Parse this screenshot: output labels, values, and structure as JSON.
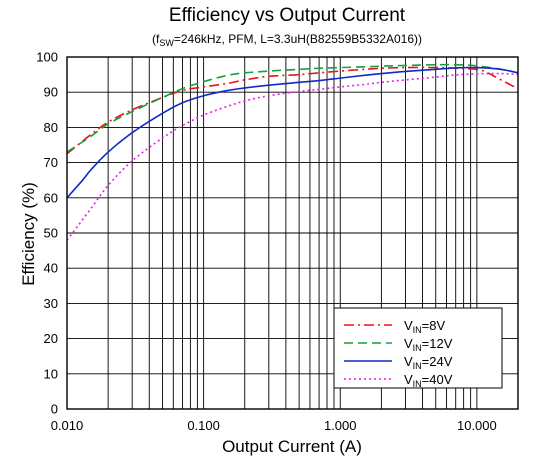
{
  "chart_data": {
    "type": "line",
    "title": "Efficiency vs Output Current",
    "subtitle": {
      "prefix": "(f",
      "prefix_sub": "SW",
      "rest": "=246kHz, PFM, L=3.3uH(B82559B5332A016))"
    },
    "xlabel": "Output Current (A)",
    "ylabel": "Efficiency (%)",
    "xscale": "log",
    "xlim": [
      0.01,
      20
    ],
    "ylim": [
      0,
      100
    ],
    "grid": true,
    "legend_position": "bottom-right",
    "xticks": [
      {
        "value": 0.01,
        "label": "0.010"
      },
      {
        "value": 0.1,
        "label": "0.100"
      },
      {
        "value": 1,
        "label": "1.000"
      },
      {
        "value": 10,
        "label": "10.000"
      }
    ],
    "yticks": [
      {
        "value": 0,
        "label": "0"
      },
      {
        "value": 10,
        "label": "10"
      },
      {
        "value": 20,
        "label": "20"
      },
      {
        "value": 30,
        "label": "30"
      },
      {
        "value": 40,
        "label": "40"
      },
      {
        "value": 50,
        "label": "50"
      },
      {
        "value": 60,
        "label": "60"
      },
      {
        "value": 70,
        "label": "70"
      },
      {
        "value": 80,
        "label": "80"
      },
      {
        "value": 90,
        "label": "90"
      },
      {
        "value": 100,
        "label": "100"
      }
    ],
    "series": [
      {
        "name": "VIN=8V",
        "label_main": "V",
        "label_sub": "IN",
        "label_rest": "=8V",
        "color": "#e8141a",
        "dash": "10,4,2,4",
        "x": [
          0.01,
          0.015,
          0.02,
          0.03,
          0.05,
          0.07,
          0.1,
          0.15,
          0.2,
          0.3,
          0.5,
          0.7,
          1,
          1.5,
          2,
          3,
          5,
          7,
          10,
          12,
          15,
          20
        ],
        "y": [
          72.5,
          78,
          81.5,
          85,
          88.5,
          90.5,
          91.5,
          92.5,
          93.5,
          94.5,
          95,
          95.5,
          96,
          96.5,
          96.8,
          97,
          97,
          96.8,
          96.5,
          95.5,
          93.5,
          91
        ]
      },
      {
        "name": "VIN=12V",
        "label_main": "V",
        "label_sub": "IN",
        "label_rest": "=12V",
        "color": "#14a03c",
        "dash": "9,5",
        "x": [
          0.01,
          0.015,
          0.02,
          0.03,
          0.05,
          0.07,
          0.1,
          0.15,
          0.2,
          0.3,
          0.5,
          0.7,
          1,
          1.5,
          2,
          3,
          5,
          7,
          10,
          15,
          20
        ],
        "y": [
          73,
          77.5,
          81,
          84.5,
          88.5,
          91,
          93,
          94.8,
          95.5,
          96,
          96.5,
          96.8,
          97,
          97.2,
          97.4,
          97.6,
          97.8,
          97.8,
          97.5,
          96.5,
          95.5
        ]
      },
      {
        "name": "VIN=24V",
        "label_main": "V",
        "label_sub": "IN",
        "label_rest": "=24V",
        "color": "#1428c8",
        "dash": "",
        "x": [
          0.01,
          0.013,
          0.015,
          0.02,
          0.03,
          0.05,
          0.07,
          0.1,
          0.15,
          0.2,
          0.3,
          0.5,
          0.7,
          1,
          1.5,
          2,
          3,
          5,
          7,
          10,
          15,
          20
        ],
        "y": [
          60,
          65,
          68,
          73,
          78.5,
          84,
          87,
          89,
          90.5,
          91.2,
          92,
          92.8,
          93.3,
          94,
          94.8,
          95.3,
          95.9,
          96.5,
          96.9,
          97,
          96.5,
          95.5
        ]
      },
      {
        "name": "VIN=40V",
        "label_main": "V",
        "label_sub": "IN",
        "label_rest": "=40V",
        "color": "#e61ee6",
        "dash": "2,3",
        "x": [
          0.01,
          0.012,
          0.015,
          0.02,
          0.03,
          0.05,
          0.07,
          0.1,
          0.15,
          0.2,
          0.3,
          0.5,
          0.7,
          1,
          1.5,
          2,
          3,
          5,
          7,
          10,
          15,
          20
        ],
        "y": [
          48,
          52,
          57,
          63.5,
          70.5,
          77,
          80.5,
          83.5,
          86,
          87.5,
          89,
          90.2,
          90.8,
          91.5,
          92.2,
          92.8,
          93.5,
          94.3,
          94.9,
          95.2,
          95.3,
          95
        ]
      }
    ]
  }
}
